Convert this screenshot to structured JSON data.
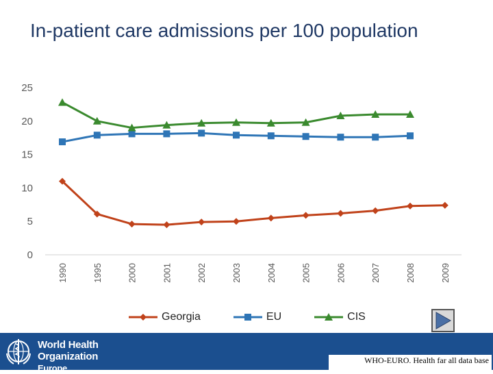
{
  "title": "In-patient care admissions per 100 population",
  "chart_data": {
    "type": "line",
    "title": "In-patient care admissions per 100 population",
    "xlabel": "",
    "ylabel": "",
    "categories": [
      "1990",
      "1995",
      "2000",
      "2001",
      "2002",
      "2003",
      "2004",
      "2005",
      "2006",
      "2007",
      "2008",
      "2009"
    ],
    "y_ticks": [
      "0",
      "5",
      "10",
      "15",
      "20",
      "25"
    ],
    "ylim": [
      0,
      25
    ],
    "grid": false,
    "legend_position": "bottom",
    "series": [
      {
        "name": "Georgia",
        "color": "#c0421a",
        "marker": "diamond",
        "values": [
          11.0,
          6.1,
          4.6,
          4.5,
          4.9,
          5.0,
          5.5,
          5.9,
          6.2,
          6.6,
          7.3,
          7.4
        ]
      },
      {
        "name": "EU",
        "color": "#2e75b6",
        "marker": "square",
        "values": [
          16.9,
          17.9,
          18.1,
          18.1,
          18.2,
          17.9,
          17.8,
          17.7,
          17.6,
          17.6,
          17.8,
          null
        ]
      },
      {
        "name": "CIS",
        "color": "#3a8a2e",
        "marker": "triangle",
        "values": [
          22.8,
          20.0,
          19.0,
          19.4,
          19.7,
          19.8,
          19.7,
          19.8,
          20.8,
          21.0,
          21.0,
          null
        ]
      }
    ]
  },
  "legend": {
    "georgia": "Georgia",
    "eu": "EU",
    "cis": "CIS"
  },
  "footer": {
    "org_line1": "World Health",
    "org_line2": "Organization",
    "org_line3": "Europe",
    "source": "WHO-EURO. Health far all data base"
  }
}
